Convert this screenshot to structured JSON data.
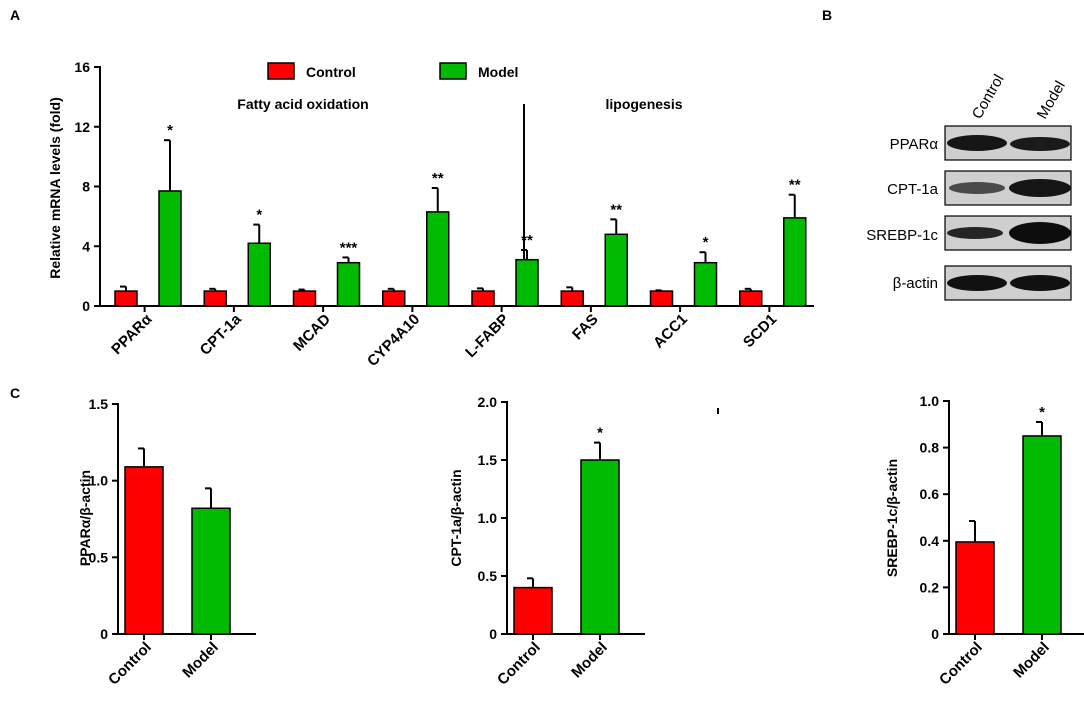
{
  "panel_labels": {
    "a": "A",
    "b": "B",
    "c": "C"
  },
  "colors": {
    "control": "#ff0000",
    "model": "#00bb00"
  },
  "chart_data": [
    {
      "id": "A",
      "type": "bar",
      "ylabel": "Relative mRNA levels (fold)",
      "ylim": [
        0,
        16
      ],
      "yticks": [
        0,
        4,
        8,
        12,
        16
      ],
      "legend": [
        "Control",
        "Model"
      ],
      "section_labels": [
        "Fatty acid oxidation",
        "lipogenesis"
      ],
      "categories": [
        "PPARα",
        "CPT-1a",
        "MCAD",
        "CYP4A10",
        "L-FABP",
        "FAS",
        "ACC1",
        "SCD1"
      ],
      "series": [
        {
          "name": "Control",
          "values": [
            1.0,
            1.0,
            1.0,
            1.0,
            1.0,
            1.0,
            1.0,
            1.0
          ],
          "errors": [
            0.3,
            0.15,
            0.1,
            0.15,
            0.18,
            0.25,
            0.05,
            0.15
          ]
        },
        {
          "name": "Model",
          "values": [
            7.7,
            4.2,
            2.9,
            6.3,
            3.1,
            4.8,
            2.9,
            5.9
          ],
          "errors": [
            3.4,
            1.25,
            0.35,
            1.6,
            0.65,
            1.0,
            0.7,
            1.55
          ]
        }
      ],
      "significance": [
        "*",
        "*",
        "***",
        "**",
        "**",
        "**",
        "*",
        "**"
      ]
    },
    {
      "id": "C1",
      "type": "bar",
      "ylabel": "PPARα/β-actin",
      "ylim": [
        0,
        1.5
      ],
      "yticks": [
        "0",
        "0.5",
        "1.0",
        "1.5"
      ],
      "categories": [
        "Control",
        "Model"
      ],
      "values": [
        1.09,
        0.82
      ],
      "errors": [
        0.12,
        0.13
      ],
      "significance": [
        "",
        ""
      ]
    },
    {
      "id": "C2",
      "type": "bar",
      "ylabel": "CPT-1a/β-actin",
      "ylim": [
        0,
        2.0
      ],
      "yticks": [
        "0",
        "0.5",
        "1.0",
        "1.5",
        "2.0"
      ],
      "categories": [
        "Control",
        "Model"
      ],
      "values": [
        0.4,
        1.5
      ],
      "errors": [
        0.08,
        0.15
      ],
      "significance": [
        "",
        "*"
      ]
    },
    {
      "id": "C3",
      "type": "bar",
      "ylabel": "SREBP-1c/β-actin",
      "ylim": [
        0,
        1.0
      ],
      "yticks": [
        "0",
        "0.2",
        "0.4",
        "0.6",
        "0.8",
        "1.0"
      ],
      "categories": [
        "Control",
        "Model"
      ],
      "values": [
        0.395,
        0.85
      ],
      "errors": [
        0.09,
        0.06
      ],
      "significance": [
        "",
        "*"
      ]
    }
  ],
  "blot": {
    "columns": [
      "Control",
      "Model"
    ],
    "rows": [
      "PPARα",
      "CPT-1a",
      "SREBP-1c",
      "β-actin"
    ]
  }
}
